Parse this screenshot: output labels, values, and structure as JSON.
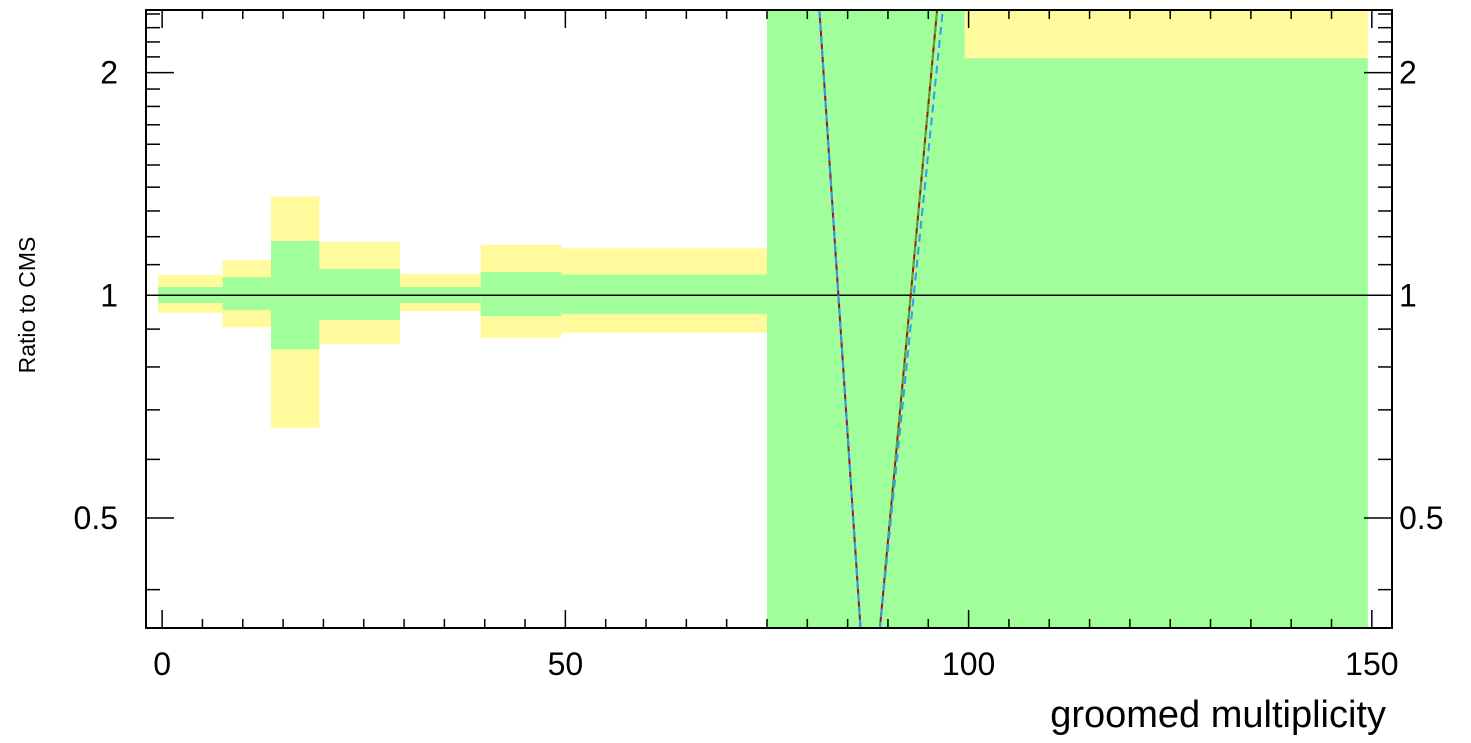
{
  "chart_data": {
    "type": "area",
    "xlabel": "groomed multiplicity",
    "ylabel": "Ratio to CMS",
    "xlim": [
      -2,
      152.5
    ],
    "ylim": [
      0.355,
      2.43
    ],
    "y_scale": "log",
    "grid": false,
    "reference_line": 1,
    "x_ticks": [
      {
        "value": 0,
        "label": "0"
      },
      {
        "value": 50,
        "label": "50"
      },
      {
        "value": 100,
        "label": "100"
      },
      {
        "value": 150,
        "label": "150"
      }
    ],
    "y_ticks": [
      {
        "value": 0.5,
        "label": "0.5"
      },
      {
        "value": 1,
        "label": "1"
      },
      {
        "value": 2,
        "label": "2"
      }
    ],
    "bands": [
      {
        "x0": -0.5,
        "x1": 7.5,
        "inner": [
          0.976,
          1.026
        ],
        "outer": [
          0.947,
          1.065
        ]
      },
      {
        "x0": 7.5,
        "x1": 13.5,
        "inner": [
          0.955,
          1.058
        ],
        "outer": [
          0.905,
          1.115
        ]
      },
      {
        "x0": 13.5,
        "x1": 19.5,
        "inner": [
          0.845,
          1.184
        ],
        "outer": [
          0.662,
          1.36
        ]
      },
      {
        "x0": 19.5,
        "x1": 29.5,
        "inner": [
          0.926,
          1.085
        ],
        "outer": [
          0.86,
          1.181
        ]
      },
      {
        "x0": 29.5,
        "x1": 39.5,
        "inner": [
          0.976,
          1.026
        ],
        "outer": [
          0.952,
          1.068
        ]
      },
      {
        "x0": 39.5,
        "x1": 49.5,
        "inner": [
          0.937,
          1.075
        ],
        "outer": [
          0.876,
          1.17
        ]
      },
      {
        "x0": 49.5,
        "x1": 75.0,
        "inner": [
          0.944,
          1.067
        ],
        "outer": [
          0.89,
          1.157
        ]
      },
      {
        "x0": 75.0,
        "x1": 99.5,
        "inner": [
          0.355,
          2.43
        ],
        "outer": [
          0.355,
          2.43
        ]
      },
      {
        "x0": 99.5,
        "x1": 149.5,
        "inner": [
          0.355,
          2.092
        ],
        "outer": [
          0.355,
          2.43
        ]
      }
    ],
    "series": [
      {
        "line_style": "solid",
        "color": "#aa1111",
        "x": [
          81.5,
          86.6,
          86.6,
          89.0,
          89.0,
          96.1
        ],
        "y": [
          2.43,
          0.355,
          0.355,
          0.355,
          0.355,
          2.43
        ]
      },
      {
        "line_style": "dashed",
        "color": "#55aa33",
        "x": [
          81.5,
          86.6,
          86.6,
          89.0,
          89.0,
          96.1
        ],
        "y": [
          2.43,
          0.355,
          0.355,
          0.355,
          0.355,
          2.43
        ]
      },
      {
        "line_style": "dashed",
        "color": "#3399ff",
        "x": [
          81.5,
          86.6,
          86.6,
          89.0,
          89.0,
          96.8
        ],
        "y": [
          2.43,
          0.355,
          0.355,
          0.355,
          0.355,
          2.43
        ]
      }
    ],
    "colors": {
      "inner_band": "#a0ff9a",
      "outer_band": "#fffb9c",
      "reference": "#000000"
    }
  }
}
